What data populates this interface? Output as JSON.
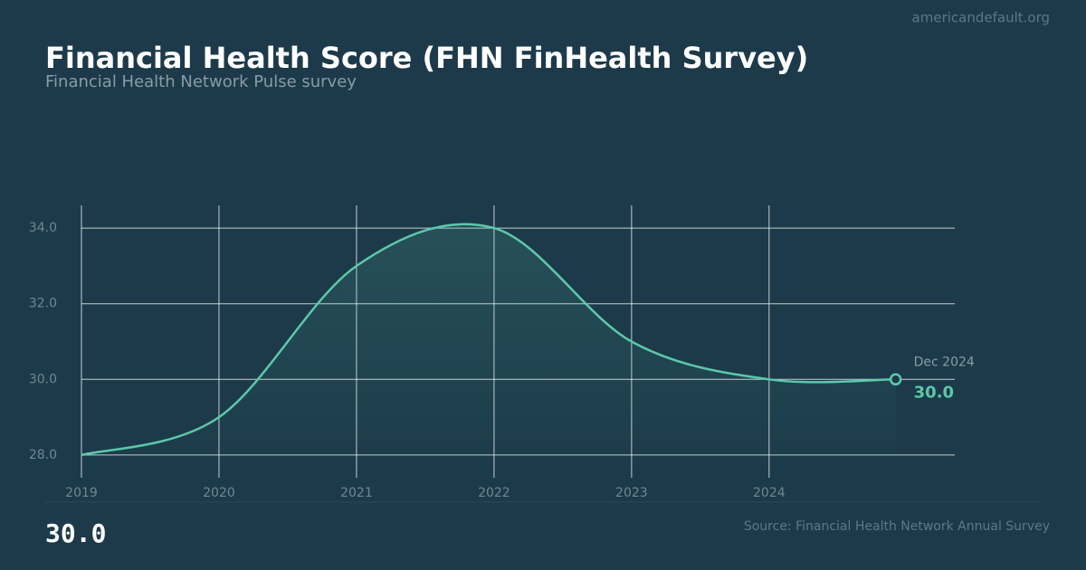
{
  "chart_data": {
    "type": "line",
    "title": "Financial Health Score (FHN FinHealth Survey)",
    "subtitle": "Financial Health Network Pulse survey",
    "watermark": "americandefault.org",
    "source": "Source: Financial Health Network Annual Survey",
    "headline": "30.0",
    "x": [
      2019,
      2020,
      2021,
      2022,
      2023,
      2024,
      2024.92
    ],
    "values": [
      28,
      29,
      33,
      34,
      31,
      30,
      30
    ],
    "value_labels": [
      null,
      null,
      null,
      null,
      null,
      null,
      "30.0"
    ],
    "point_labels": [
      null,
      null,
      null,
      null,
      null,
      null,
      "Dec 2024"
    ],
    "color": "#5cc8aa",
    "xlim": [
      2019,
      2025.35
    ],
    "ylim": [
      27.4,
      34.6
    ],
    "xticks": [
      2019,
      2020,
      2021,
      2022,
      2023,
      2024
    ],
    "yticks": [
      {
        "value": 28,
        "label": "28.0"
      },
      {
        "value": 30,
        "label": "30.0"
      },
      {
        "value": 32,
        "label": "32.0"
      },
      {
        "value": 34,
        "label": "34.0"
      }
    ],
    "grid": true
  }
}
